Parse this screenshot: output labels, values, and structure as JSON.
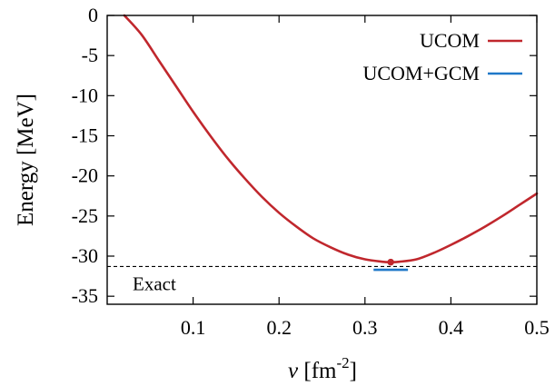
{
  "chart_data": {
    "type": "line",
    "xlabel": {
      "symbol": "ν",
      "unit_open": " [fm",
      "exp": "-2",
      "unit_close": "]"
    },
    "ylabel": "Energy [MeV]",
    "xlim": [
      0.0,
      0.5
    ],
    "ylim": [
      -36,
      0
    ],
    "xticks": [
      {
        "value": 0.1,
        "label": "0.1"
      },
      {
        "value": 0.2,
        "label": "0.2"
      },
      {
        "value": 0.3,
        "label": "0.3"
      },
      {
        "value": 0.4,
        "label": "0.4"
      },
      {
        "value": 0.5,
        "label": "0.5"
      }
    ],
    "yticks": [
      {
        "value": 0,
        "label": "0"
      },
      {
        "value": -5,
        "label": "-5"
      },
      {
        "value": -10,
        "label": "-10"
      },
      {
        "value": -15,
        "label": "-15"
      },
      {
        "value": -20,
        "label": "-20"
      },
      {
        "value": -25,
        "label": "-25"
      },
      {
        "value": -30,
        "label": "-30"
      },
      {
        "value": -35,
        "label": "-35"
      }
    ],
    "grid": false,
    "legend_position": "top-right",
    "series": [
      {
        "name": "UCOM",
        "color": "#c0272d",
        "style": "line",
        "x": [
          0.02,
          0.04,
          0.06,
          0.08,
          0.1,
          0.12,
          0.14,
          0.16,
          0.18,
          0.2,
          0.22,
          0.24,
          0.26,
          0.28,
          0.3,
          0.32,
          0.33,
          0.34,
          0.36,
          0.38,
          0.4,
          0.42,
          0.44,
          0.46,
          0.48,
          0.5
        ],
        "y": [
          0.0,
          -2.4,
          -5.6,
          -8.8,
          -12.0,
          -15.0,
          -17.8,
          -20.3,
          -22.6,
          -24.6,
          -26.3,
          -27.8,
          -28.9,
          -29.8,
          -30.4,
          -30.7,
          -30.75,
          -30.7,
          -30.4,
          -29.6,
          -28.6,
          -27.5,
          -26.3,
          -25.0,
          -23.6,
          -22.2
        ]
      },
      {
        "name": "UCOM+GCM",
        "color": "#1f78c8",
        "style": "segment",
        "x": [
          0.31,
          0.35
        ],
        "y": [
          -31.7,
          -31.7
        ]
      }
    ],
    "markers": [
      {
        "series": "UCOM",
        "x": 0.33,
        "y": -30.75,
        "color": "#c0272d"
      }
    ],
    "reference_lines": [
      {
        "y": -31.3,
        "style": "dashed",
        "label": "Exact"
      }
    ]
  }
}
